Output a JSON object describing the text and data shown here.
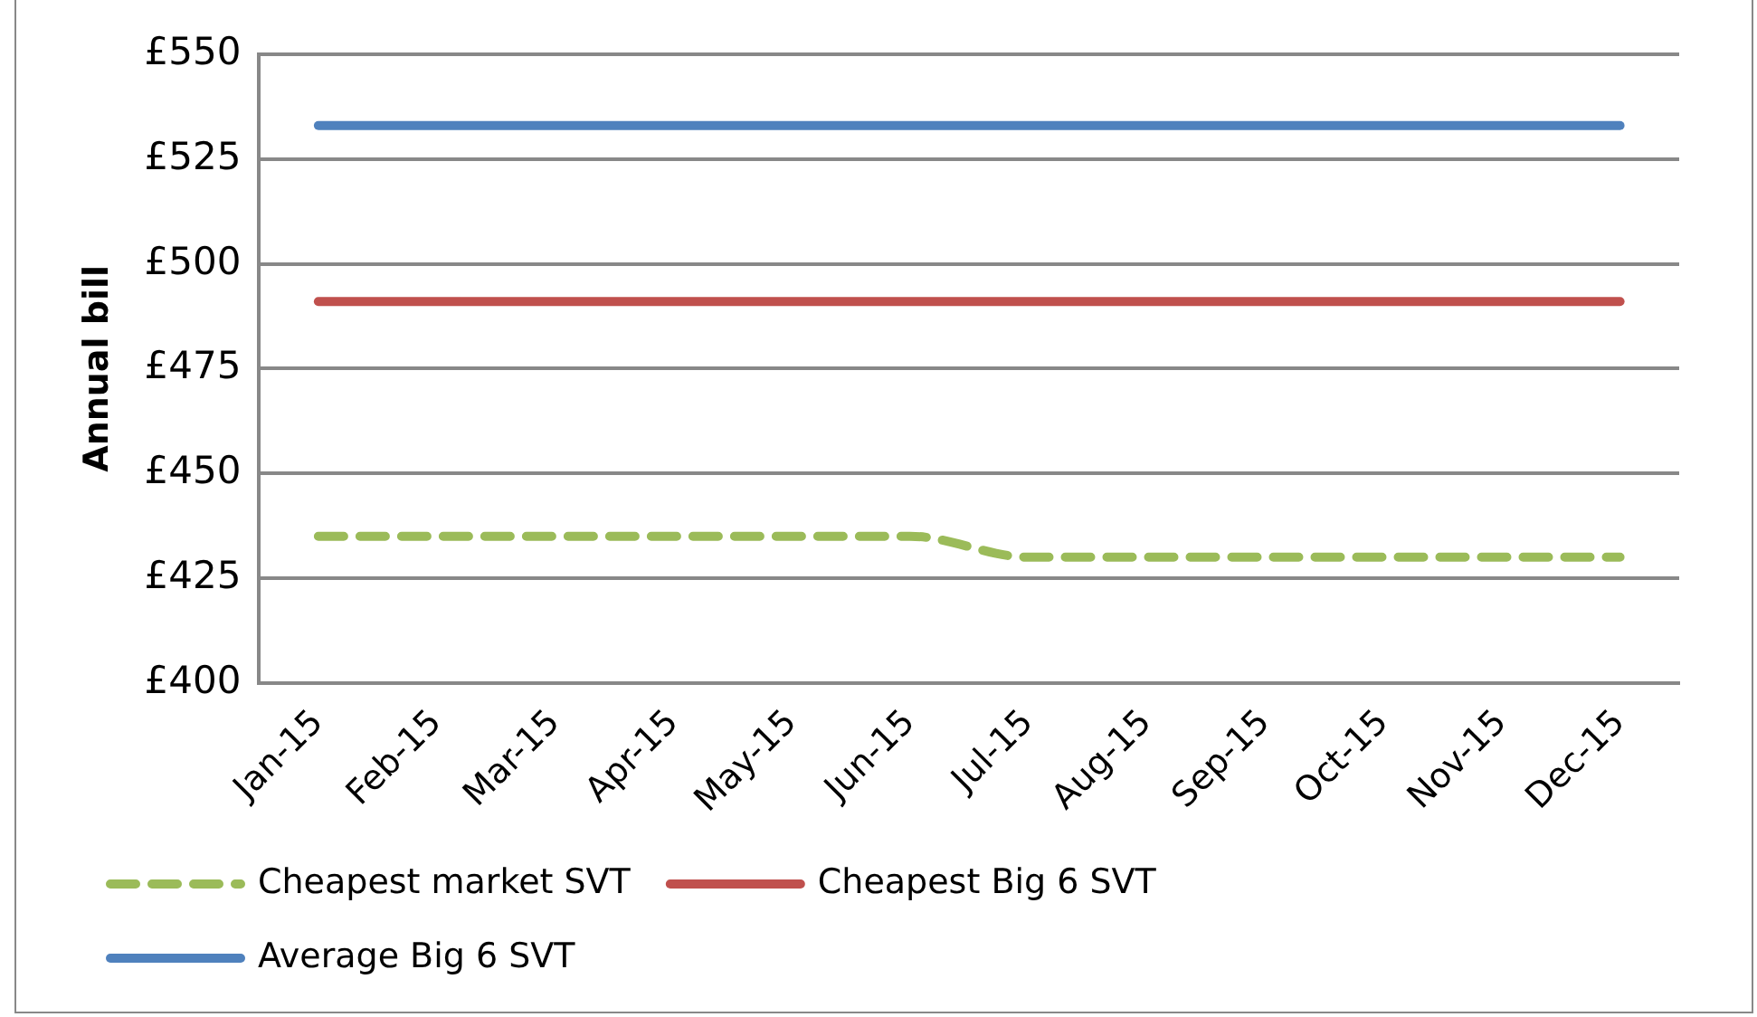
{
  "chart_data": {
    "type": "line",
    "ylabel": "Annual bill",
    "categories": [
      "Jan-15",
      "Feb-15",
      "Mar-15",
      "Apr-15",
      "May-15",
      "Jun-15",
      "Jul-15",
      "Aug-15",
      "Sep-15",
      "Oct-15",
      "Nov-15",
      "Dec-15"
    ],
    "series": [
      {
        "name": "Cheapest market SVT",
        "color": "#9bbb59",
        "line_style": "dashed",
        "values": [
          435,
          435,
          435,
          435,
          435,
          435,
          430,
          430,
          430,
          430,
          430,
          430
        ]
      },
      {
        "name": "Cheapest Big 6 SVT",
        "color": "#c0504d",
        "line_style": "solid",
        "values": [
          491,
          491,
          491,
          491,
          491,
          491,
          491,
          491,
          491,
          491,
          491,
          491
        ]
      },
      {
        "name": "Average Big 6 SVT",
        "color": "#4f81bd",
        "line_style": "solid",
        "values": [
          533,
          533,
          533,
          533,
          533,
          533,
          533,
          533,
          533,
          533,
          533,
          533
        ]
      }
    ],
    "ylim": [
      400,
      550
    ],
    "yticks": [
      {
        "value": 400,
        "label": "£400"
      },
      {
        "value": 425,
        "label": "£425"
      },
      {
        "value": 450,
        "label": "£450"
      },
      {
        "value": 475,
        "label": "£475"
      },
      {
        "value": 500,
        "label": "£500"
      },
      {
        "value": 525,
        "label": "£525"
      },
      {
        "value": 550,
        "label": "£550"
      }
    ],
    "grid": "y",
    "legend": "bottom",
    "marker": "none"
  }
}
